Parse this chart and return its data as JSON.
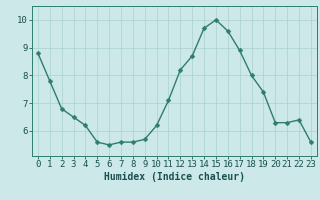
{
  "x": [
    0,
    1,
    2,
    3,
    4,
    5,
    6,
    7,
    8,
    9,
    10,
    11,
    12,
    13,
    14,
    15,
    16,
    17,
    18,
    19,
    20,
    21,
    22,
    23
  ],
  "y": [
    8.8,
    7.8,
    6.8,
    6.5,
    6.2,
    5.6,
    5.5,
    5.6,
    5.6,
    5.7,
    6.2,
    7.1,
    8.2,
    8.7,
    9.7,
    10.0,
    9.6,
    8.9,
    8.0,
    7.4,
    6.3,
    6.3,
    6.4,
    5.6
  ],
  "xlabel": "Humidex (Indice chaleur)",
  "ylabel": "",
  "xlim": [
    -0.5,
    23.5
  ],
  "ylim": [
    5.1,
    10.5
  ],
  "yticks": [
    6,
    7,
    8,
    9,
    10
  ],
  "xticks": [
    0,
    1,
    2,
    3,
    4,
    5,
    6,
    7,
    8,
    9,
    10,
    11,
    12,
    13,
    14,
    15,
    16,
    17,
    18,
    19,
    20,
    21,
    22,
    23
  ],
  "line_color": "#2e7d6e",
  "marker_color": "#2e7d6e",
  "bg_color": "#cce8e8",
  "grid_color": "#aad0d0",
  "axes_color": "#2e7d6e",
  "tick_color": "#1a5050",
  "label_color": "#1a5050",
  "font_size_xlabel": 7,
  "font_size_ticks": 6.5,
  "line_width": 1.0,
  "marker_size": 2.5
}
